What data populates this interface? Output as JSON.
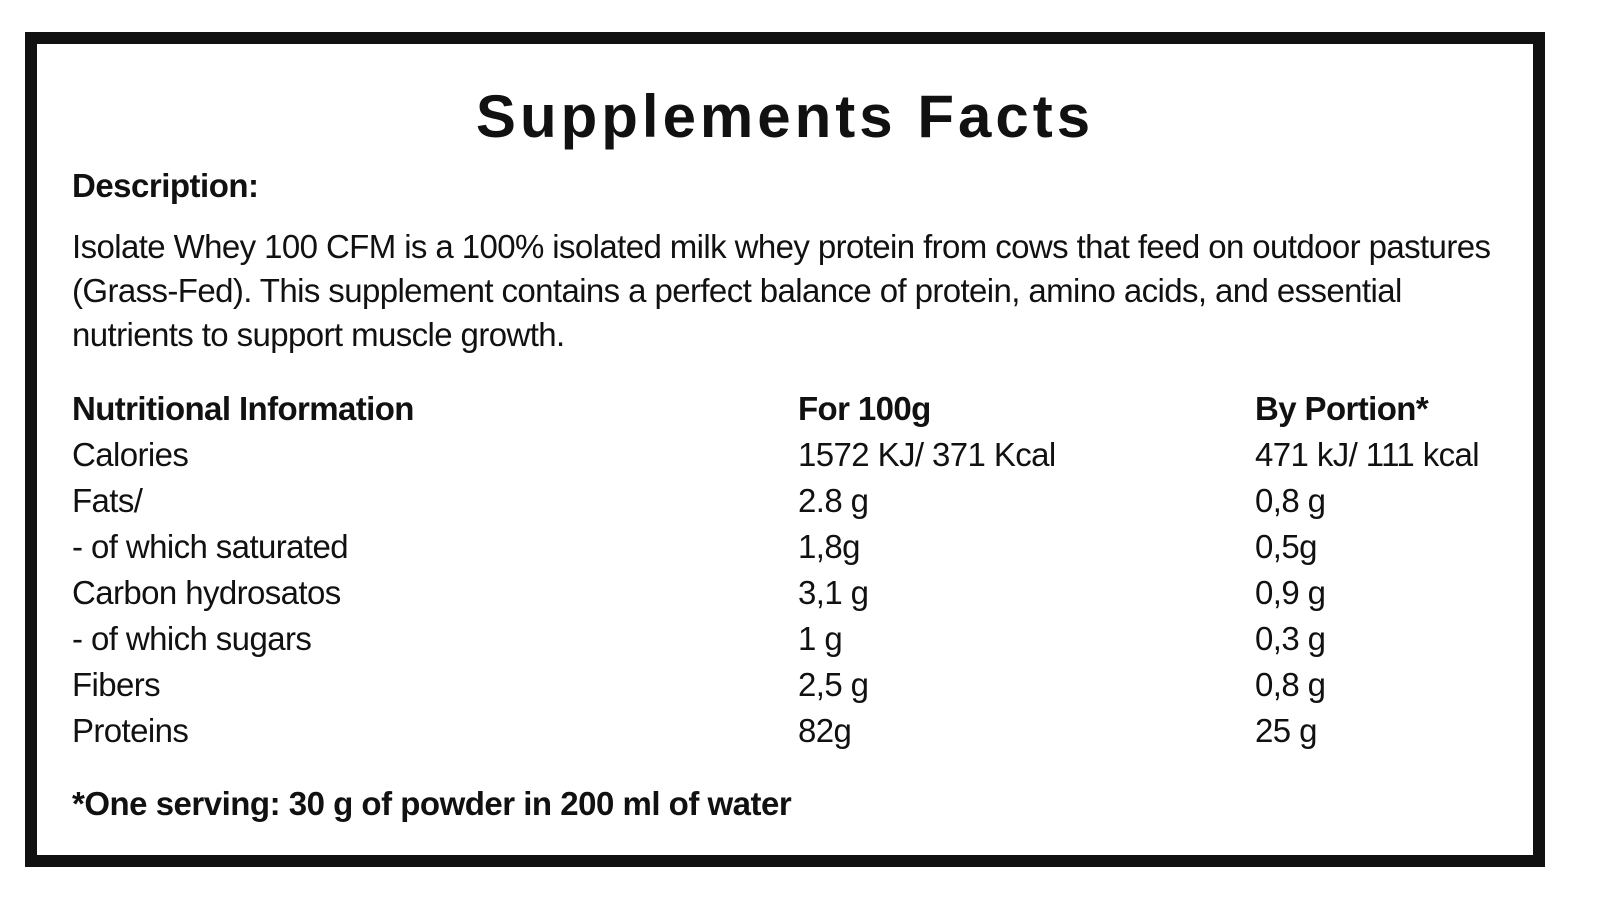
{
  "title": "Supplements Facts",
  "description": {
    "heading": "Description:",
    "text": "Isolate Whey 100 CFM is a 100% isolated milk whey protein from cows that feed on outdoor pastures (Grass-Fed). This supplement contains a perfect balance of protein, amino acids, and essential nutrients to support muscle growth."
  },
  "table": {
    "headers": [
      "Nutritional  Information",
      "For 100g",
      "By Portion*"
    ],
    "rows": [
      [
        "Calories",
        "1572 KJ/ 371 Kcal",
        "471 kJ/ 111 kcal"
      ],
      [
        "Fats/",
        "2.8 g",
        "0,8 g"
      ],
      [
        "- of which saturated",
        "1,8g",
        "0,5g"
      ],
      [
        "Carbon hydrosatos",
        "3,1 g",
        "0,9 g"
      ],
      [
        "- of which sugars",
        "1 g",
        "0,3 g"
      ],
      [
        "Fibers",
        "2,5 g",
        "0,8 g"
      ],
      [
        "Proteins",
        "82g",
        "25 g"
      ]
    ]
  },
  "footnote": "*One serving: 30 g of powder in 200 ml of water",
  "colors": {
    "border": "#111111",
    "text": "#111111",
    "background": "#ffffff"
  }
}
